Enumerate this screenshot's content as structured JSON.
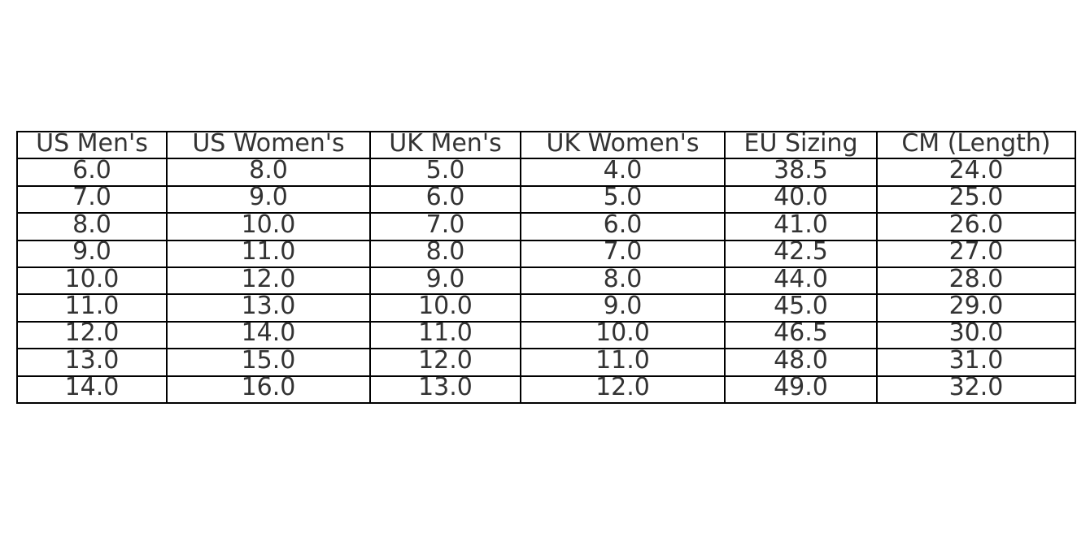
{
  "chart_data": {
    "type": "table",
    "columns": [
      "US Men's",
      "US Women's",
      "UK Men's",
      "UK Women's",
      "EU Sizing",
      "CM (Length)"
    ],
    "rows": [
      [
        "6.0",
        "8.0",
        "5.0",
        "4.0",
        "38.5",
        "24.0"
      ],
      [
        "7.0",
        "9.0",
        "6.0",
        "5.0",
        "40.0",
        "25.0"
      ],
      [
        "8.0",
        "10.0",
        "7.0",
        "6.0",
        "41.0",
        "26.0"
      ],
      [
        "9.0",
        "11.0",
        "8.0",
        "7.0",
        "42.5",
        "27.0"
      ],
      [
        "10.0",
        "12.0",
        "9.0",
        "8.0",
        "44.0",
        "28.0"
      ],
      [
        "11.0",
        "13.0",
        "10.0",
        "9.0",
        "45.0",
        "29.0"
      ],
      [
        "12.0",
        "14.0",
        "11.0",
        "10.0",
        "46.5",
        "30.0"
      ],
      [
        "13.0",
        "15.0",
        "12.0",
        "11.0",
        "48.0",
        "31.0"
      ],
      [
        "14.0",
        "16.0",
        "13.0",
        "12.0",
        "49.0",
        "32.0"
      ]
    ],
    "text_color": "#333333",
    "border_color": "#000000"
  }
}
